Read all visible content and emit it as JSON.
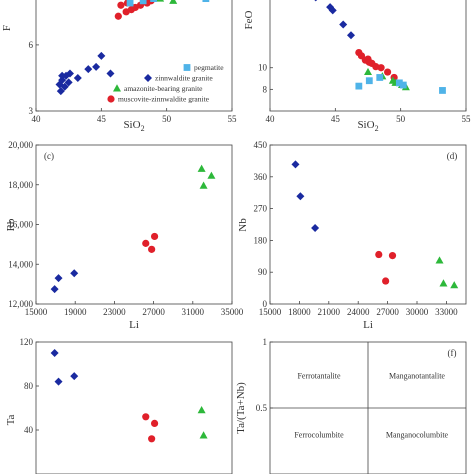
{
  "legend": {
    "pegmatite": "pegmatite",
    "zinnwaldite": "zinnwaldite granite",
    "amazonite": "amazonite-bearing granite",
    "muscovite": "muscovite-zinnwaldite granite"
  },
  "colors": {
    "pegmatite": "#4fb3e8",
    "zinnwaldite": "#1a2aa0",
    "amazonite": "#2db83a",
    "muscovite": "#e0202a"
  },
  "chart_data": [
    {
      "id": "a",
      "type": "scatter",
      "panel_label": "",
      "xlabel": "SiO2",
      "ylabel": "F",
      "xlim": [
        40,
        55
      ],
      "ylim": [
        3,
        8.4
      ],
      "xticks": [
        "40",
        "45",
        "50",
        "55"
      ],
      "yticks": [
        "3",
        "6"
      ],
      "ytick_values": [
        3,
        6
      ],
      "series": [
        {
          "name": "zinnwaldite",
          "marker": "diamond",
          "points": [
            [
              41.8,
              4.2
            ],
            [
              42.0,
              4.4
            ],
            [
              42.2,
              4.1
            ],
            [
              42.5,
              4.3
            ],
            [
              42.3,
              4.6
            ],
            [
              42.6,
              4.7
            ],
            [
              42.0,
              4.6
            ],
            [
              41.9,
              3.9
            ],
            [
              43.2,
              4.5
            ],
            [
              44.0,
              4.9
            ],
            [
              44.6,
              5.0
            ],
            [
              45.7,
              4.7
            ],
            [
              45.0,
              5.5
            ]
          ]
        },
        {
          "name": "muscovite",
          "marker": "circle",
          "points": [
            [
              46.3,
              7.3
            ],
            [
              46.9,
              7.5
            ],
            [
              47.3,
              7.6
            ],
            [
              47.6,
              7.7
            ],
            [
              48.0,
              7.8
            ],
            [
              48.5,
              7.9
            ],
            [
              47.0,
              7.9
            ],
            [
              48.8,
              8.0
            ],
            [
              46.5,
              7.8
            ]
          ]
        },
        {
          "name": "amazonite",
          "marker": "triangle",
          "points": [
            [
              49.5,
              8.1
            ],
            [
              50.2,
              8.2
            ],
            [
              50.5,
              8.0
            ],
            [
              48.8,
              8.2
            ],
            [
              49.8,
              8.3
            ]
          ]
        },
        {
          "name": "pegmatite",
          "marker": "square",
          "points": [
            [
              47.2,
              7.9
            ],
            [
              48.2,
              8.0
            ],
            [
              49.0,
              8.1
            ],
            [
              53.0,
              8.1
            ]
          ]
        }
      ]
    },
    {
      "id": "b",
      "type": "scatter",
      "panel_label": "",
      "xlabel": "SiO2",
      "ylabel": "FeO",
      "xlim": [
        40,
        55
      ],
      "ylim": [
        6,
        17
      ],
      "xticks": [
        "40",
        "45",
        "50",
        "55"
      ],
      "yticks": [
        "10",
        "8"
      ],
      "ytick_values": [
        10,
        8
      ],
      "series": [
        {
          "name": "zinnwaldite",
          "marker": "diamond",
          "points": [
            [
              43.5,
              16.5
            ],
            [
              44.6,
              15.6
            ],
            [
              44.8,
              15.3
            ],
            [
              45.6,
              14.0
            ],
            [
              46.2,
              13.0
            ]
          ]
        },
        {
          "name": "muscovite",
          "marker": "circle",
          "points": [
            [
              46.8,
              11.4
            ],
            [
              47.0,
              11.1
            ],
            [
              47.3,
              10.7
            ],
            [
              47.6,
              10.5
            ],
            [
              47.8,
              10.4
            ],
            [
              48.1,
              10.1
            ],
            [
              47.5,
              10.8
            ],
            [
              48.5,
              10.0
            ],
            [
              49.0,
              9.6
            ],
            [
              49.5,
              9.1
            ]
          ]
        },
        {
          "name": "amazonite",
          "marker": "triangle",
          "points": [
            [
              47.5,
              9.6
            ],
            [
              48.6,
              9.2
            ],
            [
              49.4,
              8.8
            ],
            [
              50.1,
              8.4
            ],
            [
              50.4,
              8.2
            ],
            [
              49.6,
              8.6
            ]
          ]
        },
        {
          "name": "pegmatite",
          "marker": "square",
          "points": [
            [
              46.8,
              8.3
            ],
            [
              47.6,
              8.8
            ],
            [
              48.4,
              9.1
            ],
            [
              49.9,
              8.6
            ],
            [
              50.2,
              8.4
            ],
            [
              53.2,
              7.9
            ]
          ]
        }
      ]
    },
    {
      "id": "c",
      "type": "scatter",
      "panel_label": "(c)",
      "xlabel": "Li",
      "ylabel": "Rb",
      "xlim": [
        15000,
        35000
      ],
      "ylim": [
        12000,
        20000
      ],
      "xticks": [
        "15000",
        "19000",
        "23000",
        "27000",
        "31000",
        "35000"
      ],
      "xtick_values": [
        15000,
        19000,
        23000,
        27000,
        31000,
        35000
      ],
      "yticks": [
        "12,000",
        "14,000",
        "16,000",
        "18,000",
        "20,000"
      ],
      "ytick_values": [
        12000,
        14000,
        16000,
        18000,
        20000
      ],
      "series": [
        {
          "name": "zinnwaldite",
          "marker": "diamond",
          "points": [
            [
              16900,
              12750
            ],
            [
              17300,
              13300
            ],
            [
              18900,
              13550
            ]
          ]
        },
        {
          "name": "muscovite",
          "marker": "circle",
          "points": [
            [
              26200,
              15050
            ],
            [
              26800,
              14750
            ],
            [
              27100,
              15400
            ]
          ]
        },
        {
          "name": "amazonite",
          "marker": "triangle",
          "points": [
            [
              31900,
              18800
            ],
            [
              32100,
              17950
            ],
            [
              32900,
              18450
            ]
          ]
        }
      ]
    },
    {
      "id": "d",
      "type": "scatter",
      "panel_label": "(d)",
      "xlabel": "Li",
      "ylabel": "Nb",
      "xlim": [
        15000,
        35000
      ],
      "ylim": [
        0,
        450
      ],
      "xticks": [
        "15000",
        "18000",
        "21000",
        "24000",
        "27000",
        "30000",
        "33000"
      ],
      "xtick_values": [
        15000,
        18000,
        21000,
        24000,
        27000,
        30000,
        33000
      ],
      "yticks": [
        "0",
        "90",
        "180",
        "270",
        "360",
        "450"
      ],
      "ytick_values": [
        0,
        90,
        180,
        270,
        360,
        450
      ],
      "series": [
        {
          "name": "zinnwaldite",
          "marker": "diamond",
          "points": [
            [
              17600,
              395
            ],
            [
              18100,
              305
            ],
            [
              19600,
              215
            ]
          ]
        },
        {
          "name": "muscovite",
          "marker": "circle",
          "points": [
            [
              26100,
              140
            ],
            [
              26800,
              65
            ],
            [
              27500,
              137
            ]
          ]
        },
        {
          "name": "amazonite",
          "marker": "triangle",
          "points": [
            [
              32300,
              123
            ],
            [
              32700,
              58
            ],
            [
              33800,
              53
            ]
          ]
        }
      ]
    },
    {
      "id": "e",
      "type": "scatter",
      "panel_label": "",
      "xlabel": "",
      "ylabel": "Ta",
      "xlim": [
        15000,
        35000
      ],
      "ylim": [
        0,
        120
      ],
      "xticks": [],
      "yticks": [
        "120",
        "80",
        "40"
      ],
      "ytick_values": [
        120,
        80,
        40
      ],
      "series": [
        {
          "name": "zinnwaldite",
          "marker": "diamond",
          "points": [
            [
              16900,
              110
            ],
            [
              17300,
              84
            ],
            [
              18900,
              89
            ]
          ]
        },
        {
          "name": "muscovite",
          "marker": "circle",
          "points": [
            [
              26200,
              52
            ],
            [
              26800,
              32
            ],
            [
              27100,
              46
            ]
          ]
        },
        {
          "name": "amazonite",
          "marker": "triangle",
          "points": [
            [
              31900,
              58
            ],
            [
              32100,
              35
            ]
          ]
        }
      ]
    },
    {
      "id": "f",
      "type": "table",
      "panel_label": "(f)",
      "ylabel": "Ta/(Ta+Nb)",
      "ylim": [
        0,
        1
      ],
      "yticks": [
        "1",
        "0.5"
      ],
      "ytick_values": [
        1,
        0.5
      ],
      "regions": [
        "Ferrotantalite",
        "Manganotantalite",
        "Ferrocolumbite",
        "Manganocolumbite"
      ]
    }
  ]
}
